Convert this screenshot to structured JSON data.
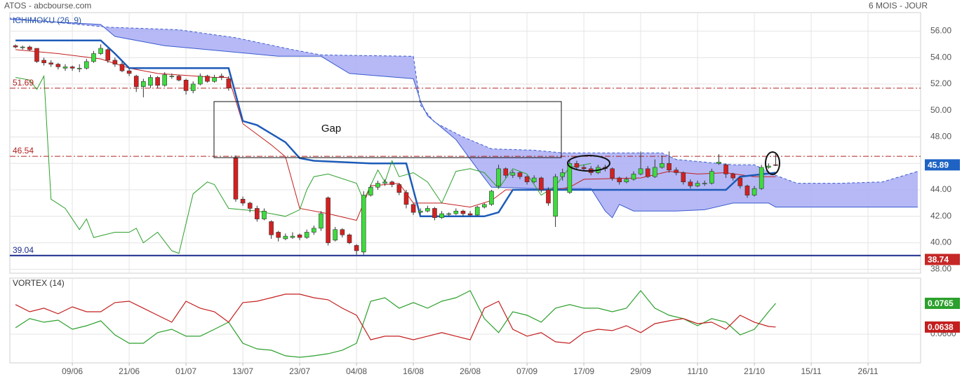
{
  "header": {
    "source": "ATOS - abcbourse.com",
    "period": "6 MOIS - JOUR"
  },
  "chart_data": [
    {
      "type": "candlestick",
      "title": "ICHIMOKU (26, 9)",
      "x": [
        0,
        1,
        2,
        3,
        4,
        5,
        6,
        7,
        8,
        9,
        10,
        11,
        12,
        13,
        14,
        15,
        16,
        17,
        18,
        19,
        20,
        21,
        22,
        23,
        24,
        25,
        26,
        27,
        28,
        29,
        30,
        31,
        32,
        33,
        34,
        35,
        36,
        37,
        38,
        39,
        40,
        41,
        42,
        43,
        44,
        45,
        46,
        47,
        48,
        49,
        50,
        51,
        52,
        53,
        54,
        55,
        56,
        57,
        58,
        59,
        60,
        61,
        62,
        63,
        64,
        65,
        66,
        67,
        68,
        69,
        70,
        71,
        72,
        73,
        74,
        75,
        76,
        77,
        78,
        79,
        80,
        81,
        82,
        83,
        84,
        85,
        86,
        87,
        88,
        89,
        90,
        91,
        92,
        93,
        94,
        95,
        96,
        97,
        98,
        99,
        100,
        101,
        102,
        103,
        104,
        105,
        106,
        107
      ],
      "open": [
        54.9,
        54.8,
        54.8,
        54.7,
        53.8,
        53.6,
        53.5,
        53.2,
        53.3,
        53.2,
        53.2,
        53.7,
        54.3,
        54.6,
        53.8,
        53.5,
        53.0,
        52.6,
        51.8,
        51.9,
        52.5,
        51.9,
        52.6,
        52.6,
        52.3,
        51.5,
        52.0,
        52.6,
        52.2,
        52.6,
        52.4,
        46.4,
        43.3,
        43.0,
        42.6,
        41.8,
        41.6,
        40.8,
        40.3,
        40.4,
        40.6,
        40.4,
        40.8,
        41.1,
        43.4,
        40.2,
        41.0,
        40.6,
        39.8,
        39.3,
        43.6,
        44.2,
        44.5,
        44.6,
        44.4,
        43.8,
        42.9,
        42.3,
        42.4,
        42.6,
        41.9,
        42.2,
        42.2,
        42.4,
        42.2,
        42.1,
        42.7,
        42.9,
        44.3,
        45.6,
        45.1,
        45.3,
        45.0,
        44.6,
        44.9,
        44.0,
        42.0,
        45.0,
        43.8,
        46.0,
        45.7,
        45.6,
        45.3,
        45.7,
        45.6,
        44.9,
        44.6,
        44.8,
        45.2,
        45.6,
        45.0,
        45.7,
        46.0,
        45.5,
        45.3,
        44.6,
        44.3,
        44.5,
        44.5,
        46.0,
        45.9,
        45.2,
        44.9,
        44.3,
        43.6,
        44.1,
        45.7,
        45.9
      ],
      "high": [
        55.0,
        54.9,
        54.9,
        54.7,
        54.0,
        53.8,
        53.6,
        53.5,
        53.4,
        53.5,
        53.9,
        54.5,
        55.0,
        54.7,
        54.0,
        53.7,
        53.2,
        52.7,
        52.4,
        52.7,
        52.6,
        52.9,
        52.8,
        52.7,
        52.4,
        52.2,
        52.8,
        52.7,
        52.7,
        52.8,
        52.6,
        46.6,
        43.5,
        43.1,
        42.8,
        42.6,
        41.7,
        40.9,
        40.7,
        40.8,
        40.7,
        41.0,
        41.3,
        42.4,
        43.5,
        41.2,
        41.1,
        40.7,
        39.9,
        43.9,
        44.4,
        44.7,
        44.8,
        44.7,
        44.5,
        44.0,
        43.0,
        42.6,
        42.8,
        42.7,
        42.4,
        42.3,
        42.6,
        42.5,
        42.4,
        42.8,
        43.0,
        44.0,
        45.9,
        45.7,
        45.5,
        45.4,
        45.1,
        45.1,
        45.0,
        44.2,
        45.2,
        45.6,
        46.3,
        46.2,
        45.9,
        45.8,
        45.9,
        45.9,
        45.7,
        45.0,
        45.0,
        45.4,
        46.9,
        45.8,
        46.3,
        46.6,
        46.9,
        45.7,
        45.4,
        44.8,
        44.7,
        44.7,
        45.6,
        46.7,
        46.0,
        45.3,
        45.0,
        44.4,
        44.3,
        45.9,
        46.0,
        46.7
      ],
      "low": [
        54.7,
        54.6,
        54.5,
        53.6,
        53.4,
        53.3,
        53.1,
        53.0,
        53.0,
        52.9,
        53.1,
        53.6,
        54.2,
        53.6,
        53.3,
        52.9,
        52.6,
        51.4,
        51.0,
        51.7,
        51.7,
        51.8,
        52.4,
        52.2,
        51.2,
        51.3,
        51.9,
        52.1,
        52.1,
        52.3,
        51.5,
        43.1,
        42.8,
        42.3,
        41.6,
        41.7,
        40.3,
        40.1,
        40.2,
        40.3,
        40.2,
        40.3,
        40.6,
        40.9,
        39.8,
        40.1,
        40.4,
        39.9,
        39.1,
        39.1,
        43.5,
        44.0,
        44.3,
        44.2,
        43.6,
        42.6,
        42.1,
        42.2,
        42.3,
        41.7,
        41.8,
        42.0,
        42.1,
        42.0,
        42.0,
        42.0,
        42.6,
        42.8,
        44.2,
        44.9,
        44.9,
        44.8,
        44.4,
        44.5,
        43.8,
        42.8,
        41.2,
        44.7,
        43.7,
        45.5,
        45.4,
        45.1,
        45.2,
        45.4,
        44.7,
        44.4,
        44.5,
        44.7,
        45.1,
        44.9,
        44.9,
        45.6,
        45.3,
        45.1,
        44.4,
        44.1,
        44.2,
        44.3,
        44.4,
        45.9,
        44.9,
        44.7,
        44.1,
        43.4,
        43.5,
        44.0,
        45.6,
        45.8
      ],
      "close": [
        54.8,
        54.8,
        54.6,
        53.7,
        53.6,
        53.5,
        53.3,
        53.3,
        53.2,
        53.2,
        53.7,
        54.3,
        54.7,
        53.8,
        53.5,
        53.0,
        52.8,
        51.8,
        52.2,
        52.5,
        51.9,
        52.7,
        52.6,
        52.3,
        51.5,
        52.0,
        52.6,
        52.2,
        52.5,
        52.5,
        51.7,
        43.3,
        43.0,
        42.6,
        41.8,
        42.4,
        40.6,
        40.4,
        40.5,
        40.5,
        40.4,
        40.8,
        41.1,
        42.2,
        40.0,
        41.0,
        40.6,
        40.0,
        39.4,
        43.6,
        44.2,
        44.5,
        44.6,
        44.4,
        43.8,
        42.9,
        42.3,
        42.4,
        42.6,
        41.9,
        42.2,
        42.2,
        42.4,
        42.2,
        42.1,
        42.7,
        42.9,
        43.9,
        45.6,
        45.1,
        45.3,
        45.0,
        44.6,
        44.9,
        44.0,
        43.0,
        45.0,
        45.3,
        46.0,
        45.7,
        45.6,
        45.3,
        45.7,
        45.6,
        44.9,
        44.6,
        44.8,
        45.2,
        45.6,
        45.0,
        45.7,
        46.0,
        45.5,
        45.3,
        44.6,
        44.3,
        44.5,
        44.5,
        45.4,
        46.1,
        45.2,
        44.9,
        44.3,
        43.6,
        44.1,
        45.7,
        45.8,
        45.89
      ],
      "up_color": "#3ddc3d",
      "down_color": "#d42020",
      "last_color": "#1e63c4",
      "xlim": [
        -0.8,
        127.4
      ],
      "ylim": [
        37.7,
        57.4
      ],
      "yticks": [
        {
          "value": 56,
          "label": "56.00"
        },
        {
          "value": 54,
          "label": "54.00"
        },
        {
          "value": 52,
          "label": "52.00"
        },
        {
          "value": 50,
          "label": "50.00"
        },
        {
          "value": 48,
          "label": "48.00"
        },
        {
          "value": 46,
          "label": "46.00"
        },
        {
          "value": 44,
          "label": "44.00"
        },
        {
          "value": 42,
          "label": "42.00"
        },
        {
          "value": 40,
          "label": "40.00"
        },
        {
          "value": 38,
          "label": "38.00"
        }
      ],
      "grid": true,
      "cloud": {
        "color": "#a9adf3",
        "edge_color": "#3a5bd0",
        "upper": {
          "x": [
            -1,
            13,
            23,
            31,
            39,
            43,
            56,
            57,
            59,
            63,
            67,
            73,
            77,
            91,
            93,
            101,
            104,
            107,
            110,
            116,
            122,
            127
          ],
          "values": [
            57.0,
            56.3,
            56.1,
            55.5,
            54.6,
            54.2,
            54.1,
            50.4,
            49.1,
            48.0,
            47.1,
            47.0,
            46.8,
            46.8,
            46.3,
            45.9,
            45.9,
            45.1,
            44.5,
            44.5,
            44.6,
            45.4
          ]
        },
        "lower": {
          "x": [
            -1,
            12,
            14,
            21,
            37,
            43,
            47,
            56,
            57,
            58,
            62,
            65,
            67,
            73,
            81,
            83,
            84,
            85,
            87,
            93,
            97,
            101,
            106,
            107,
            127
          ],
          "values": [
            56.9,
            56.5,
            55.6,
            54.9,
            54.1,
            54.1,
            52.8,
            52.4,
            50.7,
            49.6,
            47.8,
            45.6,
            44.2,
            44.1,
            44.1,
            42.4,
            41.9,
            42.9,
            42.4,
            42.4,
            42.5,
            43.0,
            43.0,
            42.7,
            42.7
          ]
        }
      },
      "lines": [
        {
          "color": "#c41e1e",
          "width": 1,
          "x": [
            0,
            6,
            12,
            16,
            20,
            28,
            30,
            32,
            36,
            38,
            40,
            44,
            48,
            50,
            54,
            56,
            60,
            64,
            67,
            69,
            76,
            78,
            80,
            88,
            92,
            96,
            100,
            104,
            107
          ],
          "values": [
            54.6,
            54.3,
            53.9,
            53.2,
            52.8,
            52.5,
            52.5,
            49.0,
            47.4,
            46.5,
            42.6,
            42.2,
            41.7,
            44.3,
            44.5,
            43.0,
            43.0,
            42.7,
            43.2,
            44.0,
            44.0,
            44.2,
            44.8,
            44.9,
            45.4,
            45.2,
            45.3,
            45.0,
            45.0
          ]
        },
        {
          "color": "#1d5bb8",
          "width": 2.5,
          "x": [
            0,
            12,
            14,
            16,
            30,
            32,
            34,
            38,
            40,
            42,
            50,
            55,
            57,
            66,
            68,
            70,
            77,
            100,
            102,
            107
          ],
          "values": [
            55.3,
            55.3,
            54.3,
            53.2,
            53.2,
            49.2,
            48.9,
            47.6,
            46.4,
            46.2,
            46.0,
            46.0,
            42.0,
            42.0,
            42.3,
            44.0,
            44.0,
            44.0,
            45.0,
            45.3
          ]
        },
        {
          "color": "#2ca02c",
          "width": 1,
          "x": [
            0,
            2,
            3,
            4,
            5,
            7,
            9,
            10,
            11,
            14,
            16,
            17,
            18,
            20,
            22,
            23,
            25,
            27,
            28,
            30,
            34,
            38,
            40,
            41,
            42,
            44,
            48,
            49,
            51,
            52,
            53,
            54,
            56,
            58,
            60,
            62,
            64,
            66,
            68,
            70,
            72,
            74,
            76,
            78,
            80,
            81
          ],
          "values": [
            52.5,
            52.3,
            51.6,
            52.6,
            43.3,
            42.6,
            41.0,
            41.8,
            40.4,
            40.8,
            40.8,
            41.1,
            40.0,
            40.8,
            39.4,
            39.2,
            43.7,
            44.6,
            44.4,
            42.6,
            42.4,
            42.0,
            42.5,
            44.0,
            45.0,
            45.2,
            44.5,
            43.2,
            45.5,
            44.6,
            46.2,
            45.0,
            45.3,
            44.6,
            43.0,
            45.4,
            45.6,
            45.3,
            44.1,
            45.6,
            45.2,
            43.6,
            44.3,
            45.7,
            45.9,
            46.0
          ]
        }
      ],
      "hlines": [
        {
          "value": 51.69,
          "color": "#b22222",
          "style": "dashdot"
        },
        {
          "value": 46.54,
          "color": "#b22222",
          "style": "dashdot"
        },
        {
          "value": 39.04,
          "color": "#1a2a8c",
          "style": "solid"
        }
      ],
      "markers": [
        {
          "value": 38.74,
          "color": "#c62828"
        }
      ],
      "annotations": [
        {
          "text": "Gap"
        }
      ]
    },
    {
      "type": "line",
      "title": "VORTEX (14)",
      "x": [
        0,
        2,
        4,
        6,
        8,
        10,
        12,
        14,
        16,
        18,
        20,
        22,
        24,
        26,
        28,
        30,
        32,
        34,
        36,
        38,
        40,
        42,
        44,
        46,
        48,
        50,
        52,
        54,
        56,
        58,
        60,
        62,
        64,
        66,
        68,
        70,
        72,
        74,
        76,
        78,
        80,
        82,
        84,
        86,
        88,
        90,
        92,
        94,
        96,
        98,
        100,
        102,
        104,
        106,
        107
      ],
      "series": [
        {
          "color": "#2ca02c",
          "values": [
            0.0634,
            0.0683,
            0.0664,
            0.0675,
            0.0626,
            0.0645,
            0.0671,
            0.0596,
            0.0551,
            0.0551,
            0.0608,
            0.0626,
            0.0589,
            0.0589,
            0.0626,
            0.0664,
            0.0551,
            0.0521,
            0.0514,
            0.0484,
            0.0476,
            0.0484,
            0.0495,
            0.0514,
            0.0551,
            0.0776,
            0.0795,
            0.0739,
            0.0769,
            0.0739,
            0.0776,
            0.0795,
            0.0833,
            0.0683,
            0.0608,
            0.072,
            0.0701,
            0.0664,
            0.0739,
            0.0758,
            0.0739,
            0.0739,
            0.072,
            0.0739,
            0.0833,
            0.0739,
            0.0701,
            0.0683,
            0.0645,
            0.0683,
            0.0664,
            0.0596,
            0.0626,
            0.072,
            0.0765
          ]
        },
        {
          "color": "#c41e1e",
          "values": [
            0.0758,
            0.072,
            0.0739,
            0.0709,
            0.0746,
            0.072,
            0.072,
            0.0769,
            0.0776,
            0.0739,
            0.0701,
            0.0664,
            0.0776,
            0.0739,
            0.072,
            0.0664,
            0.0769,
            0.0776,
            0.0795,
            0.0814,
            0.0814,
            0.0795,
            0.0784,
            0.0739,
            0.0701,
            0.057,
            0.0589,
            0.0589,
            0.057,
            0.0589,
            0.0608,
            0.0589,
            0.057,
            0.0739,
            0.0776,
            0.0626,
            0.0589,
            0.0608,
            0.0559,
            0.0551,
            0.0608,
            0.0626,
            0.0619,
            0.0645,
            0.0608,
            0.0656,
            0.0671,
            0.0683,
            0.0656,
            0.0664,
            0.0626,
            0.0701,
            0.0664,
            0.0641,
            0.0638
          ]
        }
      ],
      "xlim": [
        -0.8,
        127.4
      ],
      "ylim": [
        0.0446,
        0.09
      ],
      "yticks": [
        {
          "value": 0.06,
          "label": "0.0600"
        }
      ],
      "xticks": [
        {
          "value": 8,
          "label": "09/06"
        },
        {
          "value": 16,
          "label": "21/06"
        },
        {
          "value": 24,
          "label": "01/07"
        },
        {
          "value": 32,
          "label": "13/07"
        },
        {
          "value": 40,
          "label": "23/07"
        },
        {
          "value": 48,
          "label": "04/08"
        },
        {
          "value": 56,
          "label": "16/08"
        },
        {
          "value": 64,
          "label": "26/08"
        },
        {
          "value": 72,
          "label": "07/09"
        },
        {
          "value": 80,
          "label": "17/09"
        },
        {
          "value": 88,
          "label": "29/09"
        },
        {
          "value": 96,
          "label": "11/10"
        },
        {
          "value": 104,
          "label": "21/10"
        },
        {
          "value": 112,
          "label": "15/11"
        },
        {
          "value": 120,
          "label": "26/11"
        }
      ],
      "grid": true
    }
  ]
}
